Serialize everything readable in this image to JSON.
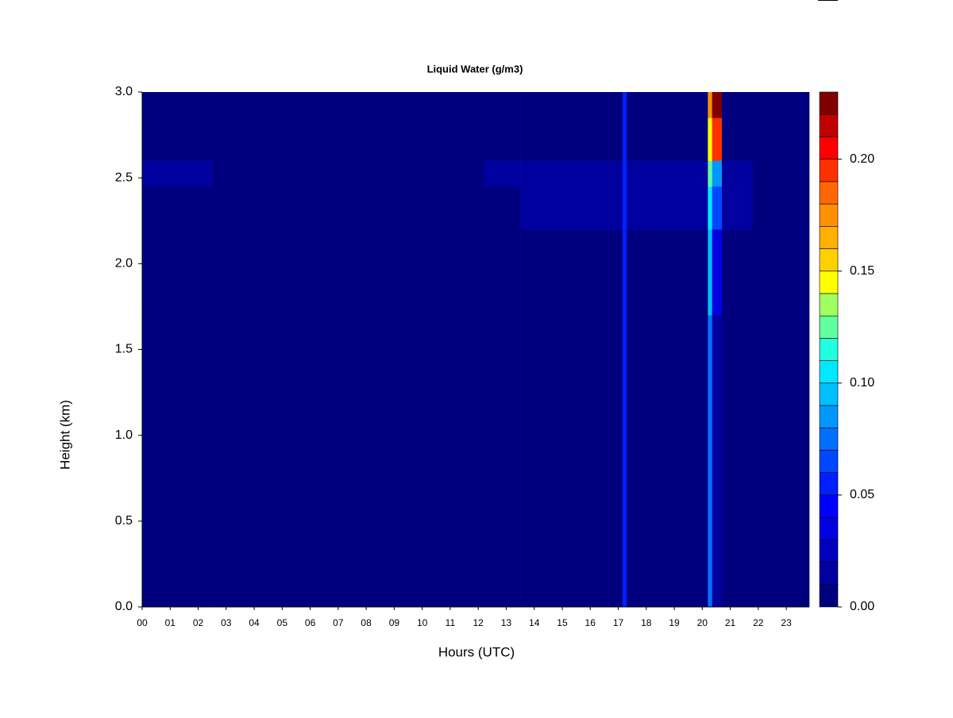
{
  "chart_data": {
    "type": "heatmap",
    "title": "Liquid Water (g/m3)",
    "x_label": "Hours (UTC)",
    "y_label": "Height (km)",
    "x_edges": [
      0,
      2.5,
      12.2,
      13.5,
      17.15,
      17.3,
      20.2,
      20.35,
      20.7,
      21.8,
      23.82
    ],
    "y_edges": [
      0,
      1.7,
      2.2,
      2.45,
      2.6,
      2.85,
      3.0
    ],
    "z": [
      [
        0.002,
        0.002,
        0.002,
        0.004,
        0.05,
        0.004,
        0.07,
        0.01,
        0.003,
        0.002
      ],
      [
        0.002,
        0.002,
        0.002,
        0.004,
        0.05,
        0.004,
        0.09,
        0.03,
        0.004,
        0.002
      ],
      [
        0.002,
        0.002,
        0.002,
        0.012,
        0.05,
        0.012,
        0.1,
        0.06,
        0.012,
        0.002
      ],
      [
        0.012,
        0.002,
        0.012,
        0.014,
        0.05,
        0.014,
        0.12,
        0.08,
        0.014,
        0.002
      ],
      [
        0.002,
        0.002,
        0.002,
        0.003,
        0.05,
        0.003,
        0.14,
        0.19,
        0.003,
        0.002
      ],
      [
        0.002,
        0.002,
        0.002,
        0.002,
        0.05,
        0.002,
        0.17,
        0.22,
        0.006,
        0.002
      ]
    ],
    "xlim": [
      0,
      23.82
    ],
    "ylim": [
      0,
      3.0
    ],
    "xticks": [
      {
        "value": 0,
        "label": "00"
      },
      {
        "value": 1,
        "label": "01"
      },
      {
        "value": 2,
        "label": "02"
      },
      {
        "value": 3,
        "label": "03"
      },
      {
        "value": 4,
        "label": "04"
      },
      {
        "value": 5,
        "label": "05"
      },
      {
        "value": 6,
        "label": "06"
      },
      {
        "value": 7,
        "label": "07"
      },
      {
        "value": 8,
        "label": "08"
      },
      {
        "value": 9,
        "label": "09"
      },
      {
        "value": 10,
        "label": "10"
      },
      {
        "value": 11,
        "label": "11"
      },
      {
        "value": 12,
        "label": "12"
      },
      {
        "value": 13,
        "label": "13"
      },
      {
        "value": 14,
        "label": "14"
      },
      {
        "value": 15,
        "label": "15"
      },
      {
        "value": 16,
        "label": "16"
      },
      {
        "value": 17,
        "label": "17"
      },
      {
        "value": 18,
        "label": "18"
      },
      {
        "value": 19,
        "label": "19"
      },
      {
        "value": 20,
        "label": "20"
      },
      {
        "value": 21,
        "label": "21"
      },
      {
        "value": 22,
        "label": "22"
      },
      {
        "value": 23,
        "label": "23"
      }
    ],
    "yticks": [
      {
        "value": 0,
        "label": "0.0"
      },
      {
        "value": 0.5,
        "label": "0.5"
      },
      {
        "value": 1.0,
        "label": "1.0"
      },
      {
        "value": 1.5,
        "label": "1.5"
      },
      {
        "value": 2.0,
        "label": "2.0"
      },
      {
        "value": 2.5,
        "label": "2.5"
      },
      {
        "value": 3.0,
        "label": "3.0"
      }
    ],
    "colorbar": {
      "levels": [
        0,
        0.01,
        0.02,
        0.03,
        0.04,
        0.05,
        0.06,
        0.07,
        0.08,
        0.09,
        0.1,
        0.11,
        0.12,
        0.13,
        0.14,
        0.15,
        0.16,
        0.17,
        0.18,
        0.19,
        0.2,
        0.21,
        0.22,
        0.23
      ],
      "colors": [
        "#00007f",
        "#00009e",
        "#0000c0",
        "#0000e0",
        "#0000ff",
        "#0020ff",
        "#0048ff",
        "#0070ff",
        "#0098ff",
        "#00c0ff",
        "#00e8ff",
        "#20ffe0",
        "#60ffa0",
        "#a0ff60",
        "#ffff00",
        "#ffd000",
        "#ffb000",
        "#ff9000",
        "#ff6800",
        "#ff3000",
        "#ff0000",
        "#c00000",
        "#800000"
      ],
      "ticks": [
        {
          "value": 0,
          "label": "0.00"
        },
        {
          "value": 0.05,
          "label": "0.05"
        },
        {
          "value": 0.1,
          "label": "0.10"
        },
        {
          "value": 0.15,
          "label": "0.15"
        },
        {
          "value": 0.2,
          "label": "0.20"
        }
      ]
    }
  }
}
